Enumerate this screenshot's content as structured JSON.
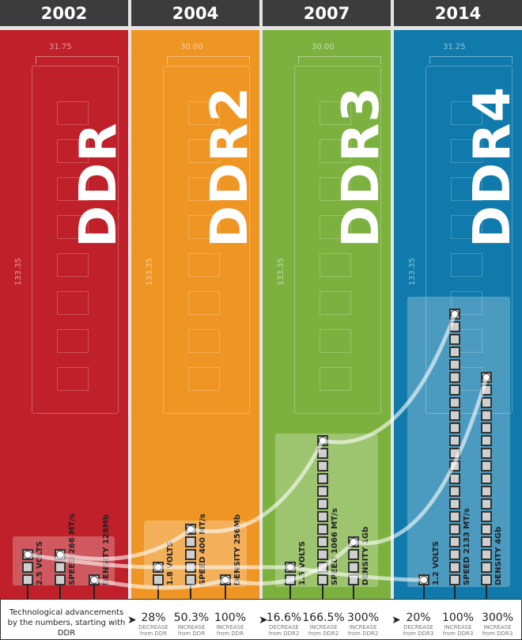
{
  "generations": [
    {
      "year": "2002",
      "name": "DDR",
      "color": "#c0202a",
      "width_dim": "31.75",
      "height_dim": "133.35",
      "stacks": [
        {
          "label": "2.5 VOLTS",
          "squares": 3
        },
        {
          "label": "SPEED 266 MT/s",
          "squares": 3
        },
        {
          "label": "DENSITY 128Mb",
          "squares": 1
        }
      ]
    },
    {
      "year": "2004",
      "name": "DDR2",
      "color": "#ef9523",
      "width_dim": "30.00",
      "height_dim": "133.35",
      "stacks": [
        {
          "label": "1.8 VOLTS",
          "squares": 2
        },
        {
          "label": "SPEED 400 MT/s",
          "squares": 5
        },
        {
          "label": "DENSITY 256Mb",
          "squares": 1
        }
      ]
    },
    {
      "year": "2007",
      "name": "DDR3",
      "color": "#7cb13f",
      "width_dim": "30.00",
      "height_dim": "133.35",
      "stacks": [
        {
          "label": "1.5 VOLTS",
          "squares": 2
        },
        {
          "label": "SPEED 1066 MT/s",
          "squares": 12
        },
        {
          "label": "DENSITY 1Gb",
          "squares": 4
        }
      ]
    },
    {
      "year": "2014",
      "name": "DDR4",
      "color": "#0f7aab",
      "width_dim": "31.25",
      "height_dim": "133.35",
      "stacks": [
        {
          "label": "1.2 VOLTS",
          "squares": 1
        },
        {
          "label": "SPEED 2133 MT/s",
          "squares": 22
        },
        {
          "label": "DENSITY 4Gb",
          "squares": 17
        }
      ]
    }
  ],
  "footer": {
    "intro": "Technological advancements by the numbers, starting with DDR",
    "stats": [
      {
        "value": "28%",
        "kind": "DECREASE",
        "from": "from DDR"
      },
      {
        "value": "50.3%",
        "kind": "INCREASE",
        "from": "from DDR"
      },
      {
        "value": "100%",
        "kind": "INCREASE",
        "from": "from DDR"
      },
      {
        "value": "16.6%",
        "kind": "DECREASE",
        "from": "from DDR2"
      },
      {
        "value": "166.5%",
        "kind": "INCREASE",
        "from": "from DDR2"
      },
      {
        "value": "300%",
        "kind": "INCREASE",
        "from": "from DDR2"
      },
      {
        "value": "20%",
        "kind": "DECREASE",
        "from": "from DDR3"
      },
      {
        "value": "100%",
        "kind": "INCREASE",
        "from": "from DDR3"
      },
      {
        "value": "300%",
        "kind": "INCREASE",
        "from": "from DDR3"
      }
    ],
    "arrow_icon": "chevron-right-icon"
  }
}
